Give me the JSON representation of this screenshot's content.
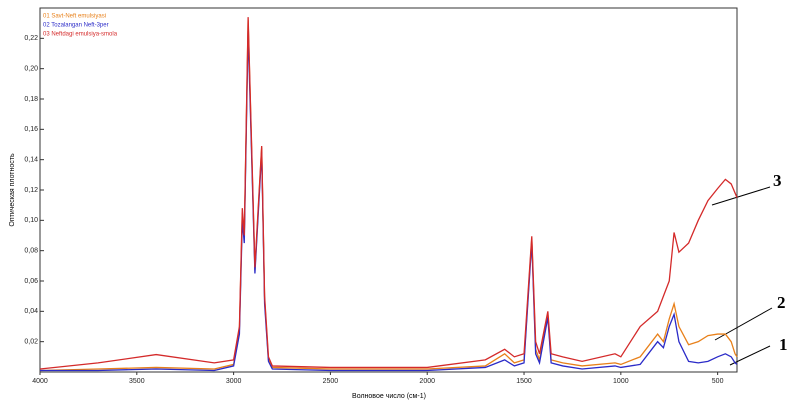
{
  "chart_data": {
    "type": "line",
    "x_label": "Волновое число (см-1)",
    "y_label": "Оптическая плотность",
    "x": [
      4000,
      3700,
      3400,
      3100,
      3000,
      2970,
      2955,
      2945,
      2925,
      2890,
      2855,
      2840,
      2820,
      2800,
      2500,
      2000,
      1700,
      1600,
      1550,
      1500,
      1460,
      1440,
      1420,
      1377,
      1360,
      1300,
      1200,
      1030,
      1000,
      900,
      810,
      780,
      750,
      725,
      700,
      650,
      600,
      550,
      500,
      460,
      430,
      410,
      400
    ],
    "series": [
      {
        "name": "01 Savt-Neft emulsiyasi",
        "color": "#e8801a",
        "values": [
          0.001,
          0.002,
          0.003,
          0.002,
          0.005,
          0.028,
          0.105,
          0.088,
          0.232,
          0.067,
          0.148,
          0.048,
          0.008,
          0.003,
          0.002,
          0.002,
          0.004,
          0.012,
          0.006,
          0.008,
          0.088,
          0.015,
          0.008,
          0.038,
          0.008,
          0.006,
          0.004,
          0.006,
          0.005,
          0.01,
          0.025,
          0.02,
          0.035,
          0.045,
          0.03,
          0.018,
          0.02,
          0.024,
          0.025,
          0.025,
          0.02,
          0.012,
          0.01
        ]
      },
      {
        "name": "02 Tozalangan Neft-3per",
        "color": "#2b2bc8",
        "values": [
          0.001,
          0.001,
          0.002,
          0.001,
          0.004,
          0.025,
          0.1,
          0.085,
          0.225,
          0.065,
          0.145,
          0.045,
          0.007,
          0.002,
          0.001,
          0.001,
          0.003,
          0.008,
          0.004,
          0.006,
          0.086,
          0.012,
          0.006,
          0.036,
          0.006,
          0.004,
          0.002,
          0.004,
          0.003,
          0.005,
          0.02,
          0.016,
          0.03,
          0.038,
          0.02,
          0.007,
          0.006,
          0.007,
          0.01,
          0.012,
          0.01,
          0.006,
          0.005
        ]
      },
      {
        "name": "03 Neftdagi emulsiya-smola",
        "color": "#d42a2a",
        "values": [
          0.002,
          0.006,
          0.0115,
          0.006,
          0.008,
          0.03,
          0.108,
          0.09,
          0.234,
          0.069,
          0.149,
          0.05,
          0.01,
          0.004,
          0.003,
          0.003,
          0.008,
          0.015,
          0.01,
          0.012,
          0.0895,
          0.02,
          0.012,
          0.04,
          0.012,
          0.01,
          0.007,
          0.012,
          0.01,
          0.03,
          0.04,
          0.05,
          0.06,
          0.092,
          0.079,
          0.085,
          0.1,
          0.113,
          0.121,
          0.127,
          0.124,
          0.118,
          0.115
        ]
      }
    ],
    "xlim": [
      4000,
      400
    ],
    "xticks": [
      4000,
      3500,
      3000,
      2500,
      2000,
      1500,
      1000,
      500
    ],
    "ylim": [
      0,
      0.24
    ],
    "yticks": [
      {
        "value": 0.02,
        "label": "0,02"
      },
      {
        "value": 0.04,
        "label": "0,04"
      },
      {
        "value": 0.06,
        "label": "0,06"
      },
      {
        "value": 0.08,
        "label": "0,08"
      },
      {
        "value": 0.1,
        "label": "0,10"
      },
      {
        "value": 0.12,
        "label": "0,12"
      },
      {
        "value": 0.14,
        "label": "0,14"
      },
      {
        "value": 0.16,
        "label": "0,16"
      },
      {
        "value": 0.18,
        "label": "0,18"
      },
      {
        "value": 0.2,
        "label": "0,20"
      },
      {
        "value": 0.22,
        "label": "0,22"
      }
    ],
    "legend": "top-left",
    "annotations": [
      "1",
      "2",
      "3"
    ]
  }
}
